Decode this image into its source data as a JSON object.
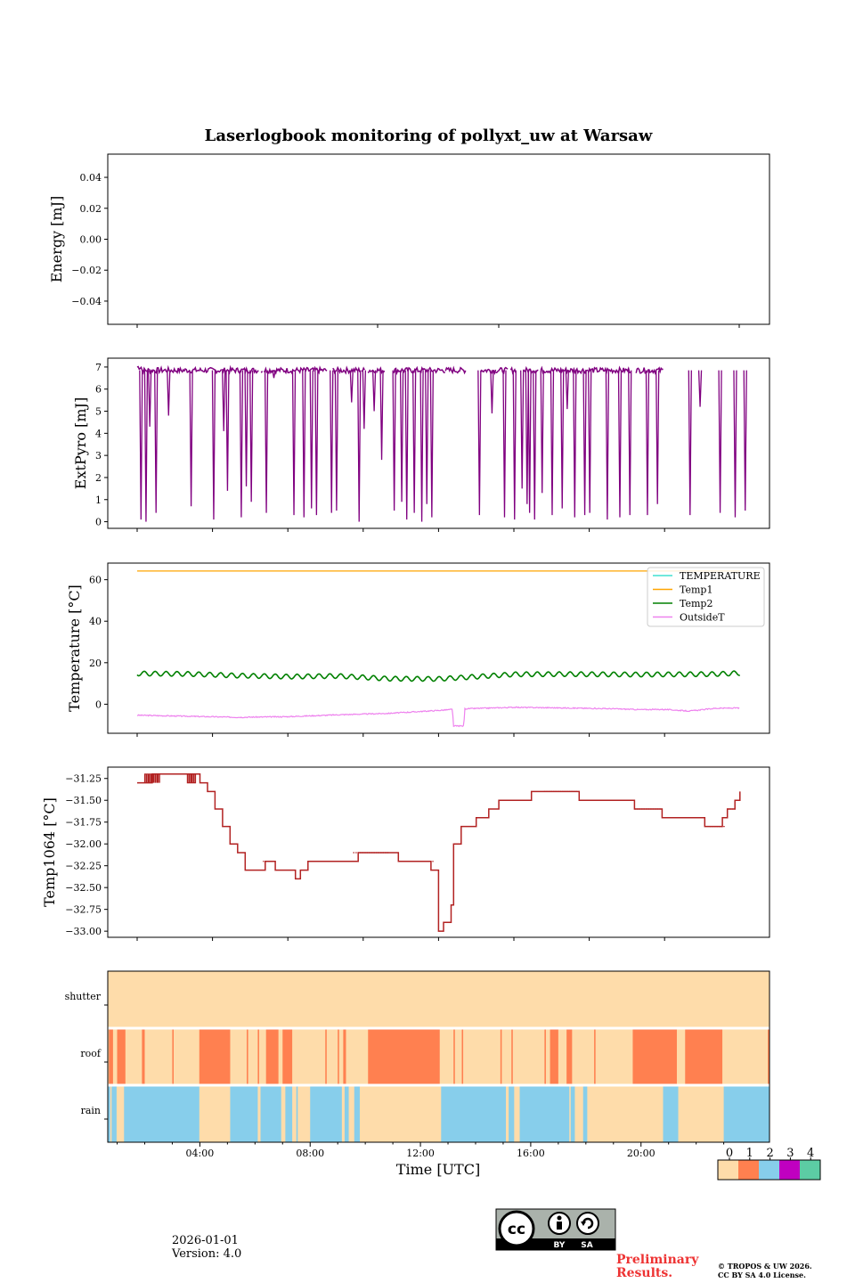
{
  "figure": {
    "title": "Laserlogbook monitoring of pollyxt_uw at Warsaw",
    "date": "2026-01-01",
    "version": "Version: 4.0",
    "preliminary_line1": "Preliminary",
    "preliminary_line2": "Results.",
    "copyright_line1": "© TROPOS & UW 2026.",
    "copyright_line2": "CC BY SA 4.0 License.",
    "license_badge": {
      "cc": "cc",
      "by": "BY",
      "sa": "SA"
    }
  },
  "chart_data": [
    {
      "id": "energy",
      "type": "line",
      "ylabel": "Energy [mJ]",
      "ylim": [
        -0.055,
        0.055
      ],
      "yticks": [
        0.04,
        0.02,
        0.0,
        -0.02,
        -0.04
      ],
      "ytick_labels": [
        "0.04",
        "0.02",
        "0.00",
        "−0.02",
        "−0.04"
      ],
      "x_tick_hours": [
        2,
        7,
        12,
        17,
        22
      ],
      "series": []
    },
    {
      "id": "extpyro",
      "type": "line",
      "ylabel": "ExtPyro [mJ]",
      "ylim": [
        -0.3,
        7.4
      ],
      "yticks": [
        0,
        1,
        2,
        3,
        4,
        5,
        6,
        7
      ],
      "ytick_labels": [
        "0",
        "1",
        "2",
        "3",
        "4",
        "5",
        "6",
        "7"
      ],
      "x_tick_hours": [
        2,
        5,
        8,
        11,
        14,
        17,
        20,
        23
      ],
      "series": [
        {
          "name": "ExtPyro",
          "color": "#800080",
          "baseline": 6.85,
          "segments": [
            [
              2.0,
              2.65
            ],
            [
              2.6,
              5.4
            ],
            [
              5.4,
              6.85
            ],
            [
              6.95,
              7.0
            ],
            [
              7.05,
              9.6
            ],
            [
              9.8,
              10.9
            ],
            [
              10.95,
              11.1
            ],
            [
              11.2,
              11.5
            ],
            [
              11.55,
              11.9
            ],
            [
              12.2,
              14.3
            ],
            [
              14.3,
              15.1
            ],
            [
              15.7,
              16.3
            ],
            [
              16.3,
              16.8
            ],
            [
              16.9,
              17.1
            ],
            [
              17.4,
              18.0
            ],
            [
              18.1,
              18.3
            ],
            [
              18.3,
              18.5
            ],
            [
              18.5,
              20.0
            ],
            [
              20.0,
              21.7
            ],
            [
              21.9,
              23.0
            ]
          ],
          "dips": [
            [
              2.1,
              0.1
            ],
            [
              2.3,
              0.0
            ],
            [
              2.45,
              4.3
            ],
            [
              2.7,
              0.4
            ],
            [
              3.2,
              4.8
            ],
            [
              4.1,
              0.7
            ],
            [
              5.0,
              0.1
            ],
            [
              5.4,
              4.1
            ],
            [
              5.55,
              1.4
            ],
            [
              6.1,
              0.2
            ],
            [
              6.3,
              1.6
            ],
            [
              6.5,
              0.9
            ],
            [
              7.1,
              0.4
            ],
            [
              7.4,
              6.5
            ],
            [
              8.2,
              0.3
            ],
            [
              8.6,
              0.2
            ],
            [
              8.9,
              0.6
            ],
            [
              9.1,
              0.3
            ],
            [
              9.7,
              0.4
            ],
            [
              9.9,
              0.5
            ],
            [
              10.5,
              5.4
            ],
            [
              10.8,
              0.0
            ],
            [
              11.0,
              4.2
            ],
            [
              11.4,
              5.0
            ],
            [
              11.7,
              2.8
            ],
            [
              12.2,
              0.5
            ],
            [
              12.5,
              0.9
            ],
            [
              12.7,
              0.1
            ],
            [
              13.0,
              0.4
            ],
            [
              13.3,
              0.0
            ],
            [
              13.5,
              0.8
            ],
            [
              13.7,
              0.2
            ],
            [
              15.6,
              0.3
            ],
            [
              16.1,
              4.9
            ],
            [
              16.6,
              0.2
            ],
            [
              17.0,
              0.1
            ],
            [
              17.3,
              1.5
            ],
            [
              17.5,
              0.8
            ],
            [
              17.6,
              0.4
            ],
            [
              17.8,
              0.1
            ],
            [
              18.1,
              1.3
            ],
            [
              18.5,
              0.3
            ],
            [
              18.9,
              0.6
            ],
            [
              19.1,
              5.1
            ],
            [
              19.4,
              0.2
            ],
            [
              19.8,
              0.3
            ],
            [
              20.0,
              0.4
            ],
            [
              20.7,
              0.1
            ],
            [
              21.2,
              0.2
            ],
            [
              21.6,
              0.3
            ],
            [
              22.3,
              0.3
            ],
            [
              22.7,
              0.8
            ],
            [
              24.0,
              0.3
            ],
            [
              24.4,
              5.2
            ],
            [
              25.2,
              0.4
            ],
            [
              25.8,
              0.2
            ],
            [
              26.2,
              0.5
            ]
          ]
        }
      ]
    },
    {
      "id": "temperature",
      "type": "line",
      "ylabel": "Temperature [°C]",
      "ylim": [
        -14,
        68
      ],
      "yticks": [
        60,
        40,
        20,
        0
      ],
      "ytick_labels": [
        "60",
        "40",
        "20",
        "0"
      ],
      "x_tick_hours": [
        2,
        5,
        8,
        11,
        14,
        17,
        20,
        23
      ],
      "legend": {
        "loc": "upper right",
        "entries": [
          "TEMPERATURE",
          "Temp1",
          "Temp2",
          "OutsideT"
        ]
      },
      "series": [
        {
          "name": "TEMPERATURE",
          "color": "#40e0d0",
          "values": []
        },
        {
          "name": "Temp1",
          "color": "#ffa500",
          "constant": 64.2
        },
        {
          "name": "Temp2",
          "color": "#008000",
          "anchors": [
            [
              2,
              14.8
            ],
            [
              4,
              14.6
            ],
            [
              6,
              13.8
            ],
            [
              8,
              13.3
            ],
            [
              10,
              13.6
            ],
            [
              12,
              12.3
            ],
            [
              14,
              12.2
            ],
            [
              15,
              12.9
            ],
            [
              17,
              14.4
            ],
            [
              19,
              14.5
            ],
            [
              22,
              14.3
            ],
            [
              25,
              14.5
            ],
            [
              26,
              15.0
            ]
          ],
          "oscillation": 1.1
        },
        {
          "name": "OutsideT",
          "color": "#ee82ee",
          "anchors": [
            [
              2,
              -5.3
            ],
            [
              4,
              -5.8
            ],
            [
              6,
              -6.3
            ],
            [
              8,
              -6.0
            ],
            [
              10,
              -5.1
            ],
            [
              12,
              -4.4
            ],
            [
              14,
              -3.0
            ],
            [
              14.55,
              -2.5
            ],
            [
              14.6,
              -10.5
            ],
            [
              15.0,
              -10.5
            ],
            [
              15.05,
              -2.2
            ],
            [
              17,
              -1.5
            ],
            [
              19,
              -1.8
            ],
            [
              21,
              -2.2
            ],
            [
              22,
              -2.6
            ],
            [
              23,
              -2.5
            ],
            [
              24,
              -3.3
            ],
            [
              25,
              -2.0
            ],
            [
              26,
              -1.8
            ]
          ]
        }
      ]
    },
    {
      "id": "temp1064",
      "type": "line",
      "ylabel": "Temp1064 [°C]",
      "ylim": [
        -33.07,
        -31.12
      ],
      "yticks": [
        -31.25,
        -31.5,
        -31.75,
        -32.0,
        -32.25,
        -32.5,
        -32.75,
        -33.0
      ],
      "ytick_labels": [
        "−31.25",
        "−31.50",
        "−31.75",
        "−32.00",
        "−32.25",
        "−32.50",
        "−32.75",
        "−33.00"
      ],
      "x_tick_hours": [
        2,
        5,
        8,
        11,
        14,
        17,
        20,
        23
      ],
      "series": [
        {
          "name": "Temp1064",
          "color": "#b22222",
          "steps": [
            [
              2.0,
              -31.3
            ],
            [
              2.6,
              -31.2
            ],
            [
              4.5,
              -31.3
            ],
            [
              4.8,
              -31.4
            ],
            [
              5.1,
              -31.6
            ],
            [
              5.4,
              -31.8
            ],
            [
              5.7,
              -32.0
            ],
            [
              6.0,
              -32.1
            ],
            [
              6.3,
              -32.3
            ],
            [
              7.1,
              -32.2
            ],
            [
              7.5,
              -32.3
            ],
            [
              8.3,
              -32.4
            ],
            [
              8.5,
              -32.3
            ],
            [
              8.8,
              -32.2
            ],
            [
              10.8,
              -32.1
            ],
            [
              12.4,
              -32.2
            ],
            [
              13.7,
              -32.3
            ],
            [
              14.0,
              -33.0
            ],
            [
              14.2,
              -32.9
            ],
            [
              14.5,
              -32.7
            ],
            [
              14.6,
              -32.0
            ],
            [
              14.9,
              -31.8
            ],
            [
              15.5,
              -31.7
            ],
            [
              16.0,
              -31.6
            ],
            [
              16.4,
              -31.5
            ],
            [
              17.7,
              -31.4
            ],
            [
              19.6,
              -31.5
            ],
            [
              21.8,
              -31.6
            ],
            [
              22.9,
              -31.7
            ],
            [
              24.6,
              -31.8
            ],
            [
              25.3,
              -31.7
            ],
            [
              25.5,
              -31.6
            ],
            [
              25.8,
              -31.5
            ],
            [
              26.0,
              -31.4
            ]
          ],
          "flicker_ranges": [
            [
              2.3,
              2.9,
              -31.2
            ],
            [
              4.0,
              4.3,
              -31.3
            ],
            [
              7.0,
              7.3,
              -32.2
            ],
            [
              10.6,
              12.0,
              -32.1
            ],
            [
              13.3,
              13.8,
              -32.2
            ],
            [
              16.4,
              17.0,
              -31.5
            ],
            [
              18.2,
              19.5,
              -31.4
            ],
            [
              20.5,
              21.0,
              -31.5
            ],
            [
              21.8,
              22.8,
              -31.6
            ],
            [
              24.8,
              25.4,
              -31.8
            ],
            [
              25.5,
              25.8,
              -31.6
            ]
          ]
        }
      ]
    },
    {
      "id": "status",
      "type": "heatmap",
      "xlabel": "Time [UTC]",
      "rows": [
        "shutter",
        "roof",
        "rain"
      ],
      "x_tick_labels": [
        "04:00",
        "08:00",
        "12:00",
        "16:00",
        "20:00"
      ],
      "x_tick_hours": [
        4,
        8,
        12,
        16,
        20
      ],
      "x_range_hours": [
        0.66,
        24.66
      ],
      "colorbar": {
        "ticks": [
          "0",
          "1",
          "2",
          "3",
          "4"
        ],
        "colors": [
          "#fedcaa",
          "#ff8050",
          "#87ceeb",
          "#c000c0",
          "#5ccca4"
        ]
      },
      "shutter_value": 0,
      "roof_intervals_state1": [
        [
          0.7,
          0.85
        ],
        [
          1.0,
          1.3
        ],
        [
          1.9,
          2.0
        ],
        [
          3.0,
          3.05
        ],
        [
          3.98,
          5.1
        ],
        [
          5.7,
          5.75
        ],
        [
          6.1,
          6.15
        ],
        [
          6.4,
          6.85
        ],
        [
          7.0,
          7.35
        ],
        [
          8.55,
          8.6
        ],
        [
          9.0,
          9.05
        ],
        [
          9.2,
          9.3
        ],
        [
          10.1,
          12.7
        ],
        [
          13.2,
          13.25
        ],
        [
          13.5,
          13.55
        ],
        [
          14.9,
          14.95
        ],
        [
          15.3,
          15.35
        ],
        [
          16.5,
          16.55
        ],
        [
          16.7,
          17.0
        ],
        [
          17.3,
          17.5
        ],
        [
          18.3,
          18.35
        ],
        [
          19.7,
          21.3
        ],
        [
          21.6,
          22.95
        ],
        [
          24.6,
          24.65
        ]
      ],
      "rain_intervals_state2": [
        [
          0.66,
          0.75
        ],
        [
          0.8,
          0.98
        ],
        [
          1.25,
          3.98
        ],
        [
          5.1,
          6.1
        ],
        [
          6.2,
          6.95
        ],
        [
          7.1,
          7.35
        ],
        [
          7.5,
          7.55
        ],
        [
          8.0,
          9.15
        ],
        [
          9.25,
          9.4
        ],
        [
          9.6,
          9.8
        ],
        [
          12.75,
          15.1
        ],
        [
          15.2,
          15.4
        ],
        [
          15.6,
          17.4
        ],
        [
          17.45,
          17.6
        ],
        [
          17.9,
          18.05
        ],
        [
          20.8,
          21.35
        ],
        [
          23.0,
          24.66
        ]
      ]
    }
  ]
}
